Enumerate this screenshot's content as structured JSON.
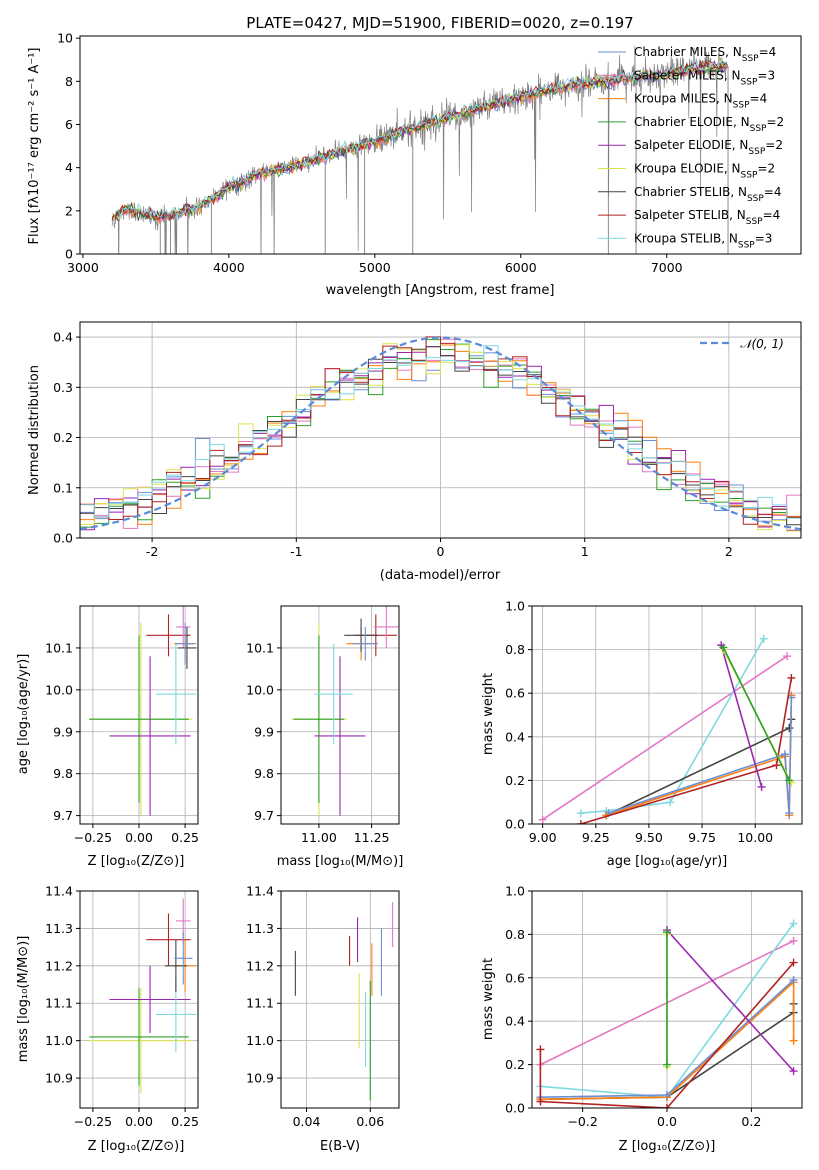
{
  "chart_data": [
    {
      "id": "spectrum",
      "type": "line",
      "title": "PLATE=0427, MJD=51900, FIBERID=0020, z=0.197",
      "xlabel": "wavelength [Angstrom, rest frame]",
      "ylabel": "Flux [fλ10⁻¹⁷ erg cm⁻² s⁻¹ A⁻¹]",
      "xlim": [
        2980,
        7920
      ],
      "ylim": [
        0,
        10.1
      ],
      "xticks": [
        3000,
        4000,
        5000,
        6000,
        7000
      ],
      "yticks": [
        0,
        2,
        4,
        6,
        8,
        10
      ],
      "grid": false,
      "legend_position": "upper-right",
      "data_trend": {
        "x": [
          3200,
          3300,
          3400,
          3500,
          3600,
          3700,
          3800,
          3900,
          4000,
          4100,
          4200,
          4400,
          4600,
          4800,
          5000,
          5200,
          5400,
          5600,
          5800,
          6000,
          6200,
          6400,
          6600,
          6800,
          7000,
          7200,
          7400
        ],
        "y": [
          1.6,
          2.1,
          1.9,
          1.7,
          1.8,
          2.0,
          2.2,
          2.6,
          3.1,
          3.3,
          3.7,
          4.0,
          4.4,
          4.8,
          5.2,
          5.7,
          6.1,
          6.5,
          6.9,
          7.3,
          7.6,
          7.9,
          8.0,
          8.2,
          8.4,
          8.6,
          8.7
        ]
      },
      "legend": [
        {
          "label": "Chabrier MILES, N",
          "sub": "SSP",
          "suffix": "=4",
          "color": "#6b8fd6"
        },
        {
          "label": "Salpeter MILES, N",
          "sub": "SSP",
          "suffix": "=3",
          "color": "#e377c2"
        },
        {
          "label": "Kroupa MILES, N",
          "sub": "SSP",
          "suffix": "=4",
          "color": "#ff7f0e"
        },
        {
          "label": "Chabrier ELODIE, N",
          "sub": "SSP",
          "suffix": "=2",
          "color": "#2ca02c"
        },
        {
          "label": "Salpeter ELODIE, N",
          "sub": "SSP",
          "suffix": "=2",
          "color": "#9b27b0"
        },
        {
          "label": "Kroupa ELODIE, N",
          "sub": "SSP",
          "suffix": "=2",
          "color": "#dbe44f"
        },
        {
          "label": "Chabrier STELIB, N",
          "sub": "SSP",
          "suffix": "=4",
          "color": "#444444"
        },
        {
          "label": "Salpeter STELIB, N",
          "sub": "SSP",
          "suffix": "=4",
          "color": "#b22222"
        },
        {
          "label": "Kroupa STELIB, N",
          "sub": "SSP",
          "suffix": "=3",
          "color": "#80d8e0"
        }
      ]
    },
    {
      "id": "residuals",
      "type": "histogram",
      "xlabel": "(data-model)/error",
      "ylabel": "Normed distribution",
      "xlim": [
        -2.5,
        2.5
      ],
      "ylim": [
        0,
        0.43
      ],
      "xticks": [
        -2,
        -1,
        0,
        1,
        2
      ],
      "yticks": [
        0.0,
        0.1,
        0.2,
        0.3,
        0.4
      ],
      "grid": true,
      "legend_position": "upper-right",
      "reference_curve": {
        "label": "𝒩(0, 1)",
        "mean": 0,
        "sigma": 1,
        "color": "#5b8bd9"
      },
      "bin_width": 0.1,
      "colors": [
        "#6b8fd6",
        "#e377c2",
        "#ff7f0e",
        "#2ca02c",
        "#9b27b0",
        "#dbe44f",
        "#444444",
        "#b22222",
        "#80d8e0"
      ]
    },
    {
      "id": "age-vs-Z",
      "type": "errorbar",
      "xlabel": "Z [log₁₀(Z/Z⊙)]",
      "ylabel": "age  [log₁₀(age/yr)]",
      "xlim": [
        -0.32,
        0.32
      ],
      "ylim": [
        9.68,
        10.2
      ],
      "xticks": [
        -0.25,
        0.0,
        0.25
      ],
      "xticklabels": [
        "−0.25",
        "0.00",
        "0.25"
      ],
      "yticks": [
        9.7,
        9.8,
        9.9,
        10.0,
        10.1
      ],
      "grid": true,
      "points": [
        {
          "x": 0.01,
          "y": 9.93,
          "xerr": 0.28,
          "yerr": 0.23,
          "color": "#dbe44f"
        },
        {
          "x": 0.0,
          "y": 9.93,
          "xerr": 0.27,
          "yerr": 0.2,
          "color": "#2ca02c"
        },
        {
          "x": 0.06,
          "y": 9.89,
          "xerr": 0.22,
          "yerr": 0.19,
          "color": "#9b27b0"
        },
        {
          "x": 0.2,
          "y": 9.99,
          "xerr": 0.11,
          "yerr": 0.12,
          "color": "#80d8e0"
        },
        {
          "x": 0.16,
          "y": 10.13,
          "xerr": 0.12,
          "yerr": 0.05,
          "color": "#b22222"
        },
        {
          "x": 0.24,
          "y": 10.15,
          "xerr": 0.04,
          "yerr": 0.05,
          "color": "#e377c2"
        },
        {
          "x": 0.25,
          "y": 10.11,
          "xerr": 0.06,
          "yerr": 0.04,
          "color": "#ff7f0e"
        },
        {
          "x": 0.26,
          "y": 10.1,
          "xerr": 0.05,
          "yerr": 0.05,
          "color": "#444444"
        },
        {
          "x": 0.25,
          "y": 10.11,
          "xerr": 0.05,
          "yerr": 0.05,
          "color": "#6b8fd6"
        }
      ]
    },
    {
      "id": "age-vs-mass",
      "type": "errorbar",
      "xlabel": "mass [log₁₀(M/M⊙)]",
      "ylabel": "",
      "xlim": [
        10.82,
        11.38
      ],
      "ylim": [
        9.68,
        10.2
      ],
      "xticks": [
        11.0,
        11.25
      ],
      "xticklabels": [
        "11.00",
        "11.25"
      ],
      "yticks": [
        9.7,
        9.8,
        9.9,
        10.0,
        10.1
      ],
      "grid": true,
      "points": [
        {
          "x": 11.0,
          "y": 9.93,
          "xerr": 0.13,
          "yerr": 0.23,
          "color": "#dbe44f"
        },
        {
          "x": 11.0,
          "y": 9.93,
          "xerr": 0.12,
          "yerr": 0.2,
          "color": "#2ca02c"
        },
        {
          "x": 11.1,
          "y": 9.89,
          "xerr": 0.12,
          "yerr": 0.19,
          "color": "#9b27b0"
        },
        {
          "x": 11.07,
          "y": 9.99,
          "xerr": 0.09,
          "yerr": 0.12,
          "color": "#80d8e0"
        },
        {
          "x": 11.27,
          "y": 10.13,
          "xerr": 0.1,
          "yerr": 0.05,
          "color": "#b22222"
        },
        {
          "x": 11.32,
          "y": 10.15,
          "xerr": 0.06,
          "yerr": 0.05,
          "color": "#e377c2"
        },
        {
          "x": 11.2,
          "y": 10.11,
          "xerr": 0.07,
          "yerr": 0.04,
          "color": "#ff7f0e"
        },
        {
          "x": 11.2,
          "y": 10.13,
          "xerr": 0.08,
          "yerr": 0.04,
          "color": "#444444"
        },
        {
          "x": 11.22,
          "y": 10.11,
          "xerr": 0.06,
          "yerr": 0.04,
          "color": "#6b8fd6"
        }
      ]
    },
    {
      "id": "weight-vs-age",
      "type": "line",
      "xlabel": "age  [log₁₀(age/yr)]",
      "ylabel": "mass weight",
      "xlim": [
        8.95,
        10.22
      ],
      "ylim": [
        0,
        1.0
      ],
      "xticks": [
        9.0,
        9.25,
        9.5,
        9.75,
        10.0
      ],
      "xticklabels": [
        "9.00",
        "9.25",
        "9.50",
        "9.75",
        "10.00"
      ],
      "yticks": [
        0.0,
        0.2,
        0.4,
        0.6,
        0.8,
        1.0
      ],
      "grid": true,
      "series": [
        {
          "color": "#e377c2",
          "x": [
            9.0,
            10.15
          ],
          "y": [
            0.02,
            0.77
          ]
        },
        {
          "color": "#80d8e0",
          "x": [
            9.18,
            9.3,
            9.6,
            10.04
          ],
          "y": [
            0.05,
            0.06,
            0.1,
            0.85
          ]
        },
        {
          "color": "#444444",
          "x": [
            9.3,
            10.16,
            10.17
          ],
          "y": [
            0.04,
            0.44,
            0.48
          ]
        },
        {
          "color": "#ff7f0e",
          "x": [
            9.3,
            10.14,
            10.16,
            10.17
          ],
          "y": [
            0.04,
            0.31,
            0.04,
            0.59
          ]
        },
        {
          "color": "#6b8fd6",
          "x": [
            9.31,
            10.14,
            10.16,
            10.17
          ],
          "y": [
            0.05,
            0.32,
            0.05,
            0.58
          ]
        },
        {
          "color": "#b22222",
          "x": [
            9.18,
            10.1,
            10.17
          ],
          "y": [
            0.0,
            0.27,
            0.67
          ]
        },
        {
          "color": "#9b27b0",
          "x": [
            9.84,
            10.03
          ],
          "y": [
            0.82,
            0.17
          ]
        },
        {
          "color": "#dbe44f",
          "x": [
            9.85,
            10.17
          ],
          "y": [
            0.8,
            0.19
          ]
        },
        {
          "color": "#2ca02c",
          "x": [
            9.85,
            10.16
          ],
          "y": [
            0.81,
            0.2
          ]
        }
      ]
    },
    {
      "id": "mass-vs-Z",
      "type": "errorbar",
      "xlabel": "Z [log₁₀(Z/Z⊙)]",
      "ylabel": "mass [log₁₀(M/M⊙)]",
      "xlim": [
        -0.32,
        0.32
      ],
      "ylim": [
        10.82,
        11.4
      ],
      "xticks": [
        -0.25,
        0.0,
        0.25
      ],
      "xticklabels": [
        "−0.25",
        "0.00",
        "0.25"
      ],
      "yticks": [
        10.9,
        11.0,
        11.1,
        11.2,
        11.3,
        11.4
      ],
      "grid": true,
      "points": [
        {
          "x": 0.01,
          "y": 11.0,
          "xerr": 0.28,
          "yerr": 0.14,
          "color": "#dbe44f"
        },
        {
          "x": 0.0,
          "y": 11.01,
          "xerr": 0.27,
          "yerr": 0.13,
          "color": "#2ca02c"
        },
        {
          "x": 0.06,
          "y": 11.11,
          "xerr": 0.22,
          "yerr": 0.09,
          "color": "#9b27b0"
        },
        {
          "x": 0.2,
          "y": 11.07,
          "xerr": 0.11,
          "yerr": 0.1,
          "color": "#80d8e0"
        },
        {
          "x": 0.16,
          "y": 11.27,
          "xerr": 0.12,
          "yerr": 0.07,
          "color": "#b22222"
        },
        {
          "x": 0.24,
          "y": 11.32,
          "xerr": 0.04,
          "yerr": 0.06,
          "color": "#e377c2"
        },
        {
          "x": 0.25,
          "y": 11.2,
          "xerr": 0.06,
          "yerr": 0.07,
          "color": "#ff7f0e"
        },
        {
          "x": 0.2,
          "y": 11.2,
          "xerr": 0.06,
          "yerr": 0.07,
          "color": "#444444"
        },
        {
          "x": 0.24,
          "y": 11.22,
          "xerr": 0.05,
          "yerr": 0.07,
          "color": "#6b8fd6"
        }
      ]
    },
    {
      "id": "mass-vs-EBV",
      "type": "errorbar",
      "xlabel": "E(B-V)",
      "ylabel": "",
      "xlim": [
        0.032,
        0.069
      ],
      "ylim": [
        10.82,
        11.4
      ],
      "xticks": [
        0.04,
        0.06
      ],
      "xticklabels": [
        "0.04",
        "0.06"
      ],
      "yticks": [
        10.9,
        11.0,
        11.1,
        11.2,
        11.3,
        11.4
      ],
      "grid": true,
      "points": [
        {
          "x": 0.0365,
          "y": 11.18,
          "xerr": 0,
          "yerr": 0.06,
          "color": "#444444"
        },
        {
          "x": 0.0535,
          "y": 11.24,
          "xerr": 0,
          "yerr": 0.04,
          "color": "#b22222"
        },
        {
          "x": 0.056,
          "y": 11.27,
          "xerr": 0,
          "yerr": 0.06,
          "color": "#9b27b0"
        },
        {
          "x": 0.0565,
          "y": 11.08,
          "xerr": 0,
          "yerr": 0.1,
          "color": "#dbe44f"
        },
        {
          "x": 0.0585,
          "y": 11.03,
          "xerr": 0,
          "yerr": 0.1,
          "color": "#80d8e0"
        },
        {
          "x": 0.06,
          "y": 11.0,
          "xerr": 0,
          "yerr": 0.16,
          "color": "#2ca02c"
        },
        {
          "x": 0.0605,
          "y": 11.19,
          "xerr": 0,
          "yerr": 0.07,
          "color": "#ff7f0e"
        },
        {
          "x": 0.0635,
          "y": 11.21,
          "xerr": 0,
          "yerr": 0.09,
          "color": "#6b8fd6"
        },
        {
          "x": 0.067,
          "y": 11.31,
          "xerr": 0,
          "yerr": 0.06,
          "color": "#e377c2"
        }
      ]
    },
    {
      "id": "weight-vs-Z",
      "type": "line",
      "xlabel": "Z [log₁₀(Z/Z⊙)]",
      "ylabel": "mass weight",
      "xlim": [
        -0.32,
        0.32
      ],
      "ylim": [
        0,
        1.0
      ],
      "xticks": [
        -0.2,
        0.0,
        0.2
      ],
      "xticklabels": [
        "−0.2",
        "0.0",
        "0.2"
      ],
      "yticks": [
        0.0,
        0.2,
        0.4,
        0.6,
        0.8,
        1.0
      ],
      "grid": true,
      "series": [
        {
          "color": "#e377c2",
          "x": [
            -0.3,
            0.3
          ],
          "y": [
            0.2,
            0.77
          ]
        },
        {
          "color": "#80d8e0",
          "x": [
            -0.3,
            0.0,
            0.3
          ],
          "y": [
            0.1,
            0.05,
            0.85
          ]
        },
        {
          "color": "#444444",
          "x": [
            -0.3,
            0.0,
            0.3,
            0.3
          ],
          "y": [
            0.04,
            0.05,
            0.44,
            0.48
          ]
        },
        {
          "color": "#ff7f0e",
          "x": [
            -0.3,
            0.0,
            0.3,
            0.3
          ],
          "y": [
            0.04,
            0.05,
            0.58,
            0.31
          ]
        },
        {
          "color": "#6b8fd6",
          "x": [
            -0.3,
            0.0,
            0.3
          ],
          "y": [
            0.05,
            0.06,
            0.59
          ]
        },
        {
          "color": "#b22222",
          "x": [
            -0.3,
            -0.3,
            0.0,
            0.3
          ],
          "y": [
            0.27,
            0.03,
            0.0,
            0.67
          ]
        },
        {
          "color": "#9b27b0",
          "x": [
            0.0,
            0.3
          ],
          "y": [
            0.82,
            0.17
          ]
        },
        {
          "color": "#dbe44f",
          "x": [
            0.0,
            0.0
          ],
          "y": [
            0.8,
            0.19
          ]
        },
        {
          "color": "#2ca02c",
          "x": [
            0.0,
            0.0
          ],
          "y": [
            0.81,
            0.2
          ]
        }
      ]
    }
  ]
}
